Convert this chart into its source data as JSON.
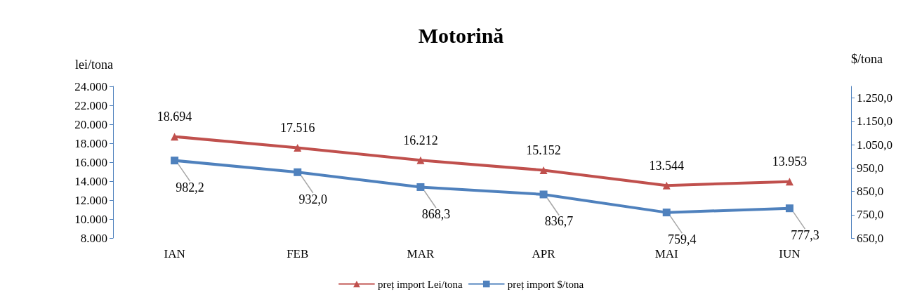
{
  "chart_data": {
    "type": "line",
    "title": "Motorină",
    "ylabel": "lei/tona",
    "y2label": "$/tona",
    "categories": [
      "IAN",
      "FEB",
      "MAR",
      "APR",
      "MAI",
      "IUN"
    ],
    "series": [
      {
        "name": "preț import Lei/tona",
        "color": "#c0504d",
        "marker": "triangle",
        "values": [
          18694,
          17516,
          16212,
          15152,
          13544,
          13953
        ],
        "value_labels": [
          "18.694",
          "17.516",
          "16.212",
          "15.152",
          "13.544",
          "13.953"
        ]
      },
      {
        "name": "preț import $/tona",
        "color": "#4f81bd",
        "marker": "square",
        "axis": "y2",
        "values": [
          982.2,
          932.0,
          868.3,
          836.7,
          759.4,
          777.3
        ],
        "value_labels": [
          "982,2",
          "932,0",
          "868,3",
          "836,7",
          "759,4",
          "777,3"
        ]
      }
    ],
    "ylim": [
      8000,
      24000
    ],
    "yticks": [
      {
        "value": 8000,
        "label": "8.000"
      },
      {
        "value": 10000,
        "label": "10.000"
      },
      {
        "value": 12000,
        "label": "12.000"
      },
      {
        "value": 14000,
        "label": "14.000"
      },
      {
        "value": 16000,
        "label": "16.000"
      },
      {
        "value": 18000,
        "label": "18.000"
      },
      {
        "value": 20000,
        "label": "20.000"
      },
      {
        "value": 22000,
        "label": "22.000"
      },
      {
        "value": 24000,
        "label": "24.000"
      }
    ],
    "y2lim": [
      650,
      1300
    ],
    "y2ticks": [
      {
        "value": 650,
        "label": "650,0"
      },
      {
        "value": 750,
        "label": "750,0"
      },
      {
        "value": 850,
        "label": "850,0"
      },
      {
        "value": 950,
        "label": "950,0"
      },
      {
        "value": 1050,
        "label": "1.050,0"
      },
      {
        "value": 1150,
        "label": "1.150,0"
      },
      {
        "value": 1250,
        "label": "1.250,0"
      }
    ],
    "grid": false,
    "legend": "bottom",
    "line_style": "solid"
  }
}
